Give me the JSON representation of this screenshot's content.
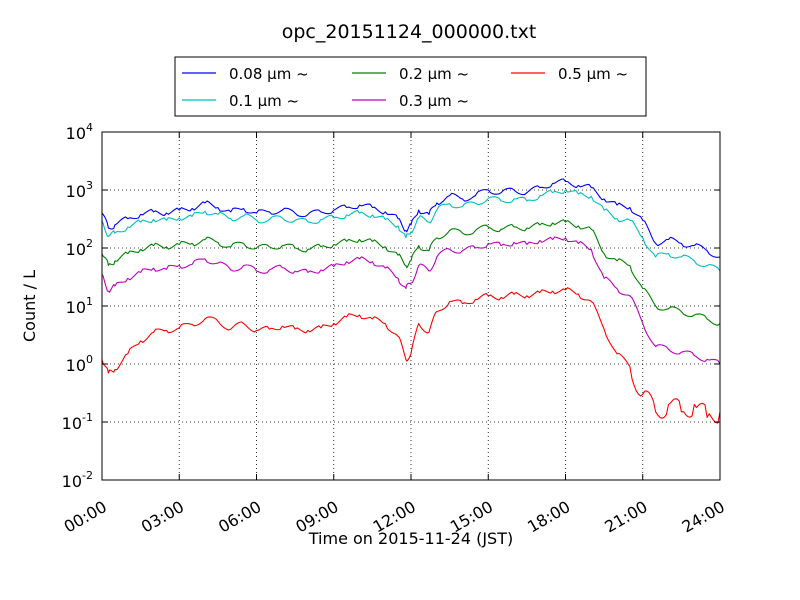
{
  "chart_data": {
    "type": "line",
    "title": "opc_20151124_000000.txt",
    "xlabel": "Time on 2015-11-24 (JST)",
    "ylabel": "Count / L",
    "x_unit": "hours",
    "xlim": [
      0,
      24
    ],
    "y_scale": "log",
    "ylim": [
      0.01,
      10000
    ],
    "grid": true,
    "legend_position": "top",
    "x_ticks": [
      {
        "value": 0,
        "label": "00:00"
      },
      {
        "value": 3,
        "label": "03:00"
      },
      {
        "value": 6,
        "label": "06:00"
      },
      {
        "value": 9,
        "label": "09:00"
      },
      {
        "value": 12,
        "label": "12:00"
      },
      {
        "value": 15,
        "label": "15:00"
      },
      {
        "value": 18,
        "label": "18:00"
      },
      {
        "value": 21,
        "label": "21:00"
      },
      {
        "value": 24,
        "label": "24:00"
      }
    ],
    "y_ticks": [
      {
        "value": 0.01,
        "base": "10",
        "exp": "-2"
      },
      {
        "value": 0.1,
        "base": "10",
        "exp": "-1"
      },
      {
        "value": 1,
        "base": "10",
        "exp": "0"
      },
      {
        "value": 10,
        "base": "10",
        "exp": "1"
      },
      {
        "value": 100,
        "base": "10",
        "exp": "2"
      },
      {
        "value": 1000,
        "base": "10",
        "exp": "3"
      },
      {
        "value": 10000,
        "base": "10",
        "exp": "4"
      }
    ],
    "x": [
      0,
      0.25,
      0.5,
      1,
      1.5,
      2,
      2.5,
      3,
      3.5,
      4,
      4.5,
      5,
      5.5,
      6,
      6.5,
      7,
      7.5,
      8,
      8.5,
      9,
      9.5,
      10,
      10.5,
      11,
      11.5,
      11.8,
      12,
      12.3,
      12.7,
      13,
      13.5,
      14,
      14.5,
      15,
      15.5,
      16,
      16.5,
      17,
      17.5,
      18,
      18.5,
      19,
      19.5,
      20,
      20.5,
      21,
      21.5,
      22,
      22.5,
      23,
      23.5,
      24
    ],
    "series": [
      {
        "name": "0.08 μm ~",
        "color": "#0000ff",
        "values": [
          400,
          220,
          250,
          320,
          380,
          420,
          400,
          450,
          480,
          600,
          500,
          420,
          480,
          400,
          420,
          450,
          400,
          380,
          420,
          450,
          500,
          550,
          500,
          420,
          320,
          200,
          250,
          450,
          380,
          600,
          800,
          700,
          800,
          1000,
          900,
          1000,
          900,
          1100,
          1300,
          1400,
          1200,
          1100,
          700,
          550,
          500,
          300,
          120,
          140,
          120,
          110,
          90,
          70
        ]
      },
      {
        "name": "0.1 μm ~",
        "color": "#00bfbf",
        "values": [
          300,
          160,
          180,
          230,
          280,
          310,
          300,
          330,
          350,
          430,
          380,
          320,
          360,
          300,
          310,
          330,
          300,
          280,
          310,
          330,
          370,
          400,
          370,
          310,
          240,
          150,
          190,
          330,
          280,
          450,
          580,
          520,
          590,
          720,
          650,
          700,
          650,
          800,
          900,
          1000,
          850,
          780,
          450,
          320,
          300,
          150,
          70,
          80,
          70,
          60,
          50,
          40
        ]
      },
      {
        "name": "0.2 μm ~",
        "color": "#008000",
        "values": [
          80,
          50,
          60,
          80,
          95,
          110,
          105,
          115,
          120,
          140,
          125,
          105,
          120,
          100,
          105,
          110,
          100,
          95,
          105,
          115,
          130,
          140,
          130,
          105,
          75,
          50,
          60,
          110,
          90,
          150,
          200,
          180,
          200,
          230,
          210,
          230,
          220,
          250,
          270,
          280,
          240,
          210,
          80,
          60,
          50,
          20,
          10,
          9,
          8,
          7,
          6,
          5
        ]
      },
      {
        "name": "0.3 μm ~",
        "color": "#bf00bf",
        "values": [
          35,
          18,
          22,
          30,
          38,
          45,
          43,
          50,
          52,
          65,
          55,
          42,
          50,
          40,
          42,
          46,
          40,
          38,
          42,
          48,
          58,
          65,
          58,
          45,
          30,
          20,
          25,
          50,
          40,
          70,
          95,
          90,
          100,
          120,
          110,
          125,
          115,
          135,
          140,
          150,
          120,
          95,
          30,
          20,
          15,
          5,
          2,
          1.8,
          1.6,
          1.4,
          1.2,
          1.0
        ]
      },
      {
        "name": "0.5 μm ~",
        "color": "#ff0000",
        "values": [
          1.2,
          0.7,
          0.8,
          1.5,
          2.5,
          3.5,
          3.8,
          4.2,
          4.8,
          6,
          5.5,
          4,
          5,
          3.8,
          4,
          4.5,
          4,
          3.8,
          4.2,
          5,
          6.5,
          7,
          6,
          5,
          3,
          1.2,
          1.5,
          5,
          3.5,
          8,
          12,
          11,
          13,
          15,
          14,
          16,
          15,
          17,
          18,
          19,
          16,
          12,
          4,
          1.5,
          0.9,
          0.3,
          0.15,
          0.2,
          0.15,
          0.2,
          0.12,
          0.15
        ]
      }
    ]
  }
}
